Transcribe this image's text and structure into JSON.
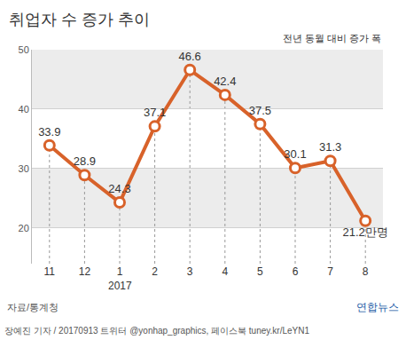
{
  "chart_data": {
    "type": "line",
    "title": "취업자 수 증가 추이",
    "subtitle": "전년 동월 대비 증가 폭",
    "categories": [
      "11",
      "12",
      "1",
      "2",
      "3",
      "4",
      "5",
      "6",
      "7",
      "8"
    ],
    "values": [
      33.9,
      28.9,
      24.3,
      37.1,
      46.6,
      42.4,
      37.5,
      30.1,
      31.3,
      21.2
    ],
    "value_labels": [
      "33.9",
      "28.9",
      "24.3",
      "37.1",
      "46.6",
      "42.4",
      "37.5",
      "30.1",
      "31.3",
      "21.2만명"
    ],
    "color": "#d8622a",
    "marker": "circle",
    "data_labels": true,
    "ylim": [
      14,
      50
    ],
    "yticks": [
      20,
      30,
      40,
      50
    ],
    "grid": true,
    "annotations": [
      {
        "text": "2017",
        "category": "1"
      }
    ],
    "source": "자료/통계청",
    "credit": "장예진 기자 / 20170913 트위터 @yonhap_graphics, 페이스북 tuney.kr/LeYN1",
    "logo": "연합뉴스"
  }
}
